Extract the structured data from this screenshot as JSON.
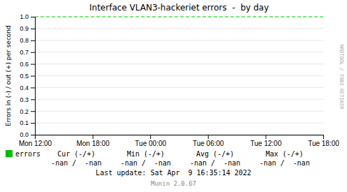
{
  "chart_data": {
    "type": "line",
    "title": "Interface VLAN3-hackeriet errors  -  by day",
    "y_label": "Errors in (-) / out (+) per second",
    "xlim": [
      0,
      5
    ],
    "xticks": [
      {
        "value": 0,
        "label": "Mon 12:00"
      },
      {
        "value": 1,
        "label": "Mon 18:00"
      },
      {
        "value": 2,
        "label": "Tue 00:00"
      },
      {
        "value": 3,
        "label": "Tue 06:00"
      },
      {
        "value": 4,
        "label": "Tue 12:00"
      },
      {
        "value": 5,
        "label": "Tue 18:00"
      }
    ],
    "ylim": [
      0.0,
      1.0
    ],
    "yticks": [
      {
        "value": 0.0,
        "label": "0.0"
      },
      {
        "value": 0.1,
        "label": "0.1"
      },
      {
        "value": 0.2,
        "label": "0.2"
      },
      {
        "value": 0.3,
        "label": "0.3"
      },
      {
        "value": 0.4,
        "label": "0.4"
      },
      {
        "value": 0.5,
        "label": "0.5"
      },
      {
        "value": 0.6,
        "label": "0.6"
      },
      {
        "value": 0.7,
        "label": "0.7"
      },
      {
        "value": 0.8,
        "label": "0.8"
      },
      {
        "value": 0.9,
        "label": "0.9"
      },
      {
        "value": 1.0,
        "label": "1.0"
      }
    ],
    "grid": "y",
    "reference_line": {
      "value": 1.0,
      "color": "#00dd00",
      "line_style": "dashed"
    },
    "series": [
      {
        "name": "errors",
        "color": "#00bb00",
        "values": [],
        "stats": [
          "-nan /  -nan",
          "-nan /  -nan",
          "-nan /  -nan",
          "-nan /  -nan"
        ]
      }
    ],
    "stats_labels": [
      "Cur (-/+)",
      "Min (-/+)",
      "Avg (-/+)",
      "Max (-/+)"
    ],
    "watermark": "RRDTOOL / TOBI OETIKER",
    "last_update": "Last update: Sat Apr  9 16:35:14 2022",
    "version": "Munin 2.0.67"
  }
}
